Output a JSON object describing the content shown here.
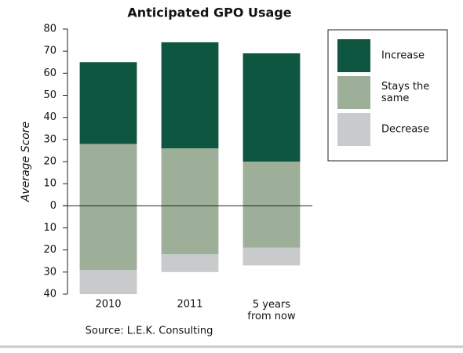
{
  "chart_data": {
    "type": "diverging-stacked-bar",
    "title": "Anticipated GPO Usage",
    "y_label": "Average Score",
    "source": "Source: L.E.K. Consulting",
    "categories": [
      "2010",
      "2011",
      "5 years from now"
    ],
    "series": [
      {
        "name": "Increase",
        "color": "#0f5640",
        "values": [
          37,
          48,
          49
        ]
      },
      {
        "name": "Stays the same",
        "color": "#9daf98",
        "values": [
          28,
          26,
          20
        ],
        "values_below": [
          -29,
          -22,
          -19
        ]
      },
      {
        "name": "Decrease",
        "color": "#c8cacb",
        "values": [
          -11,
          -8,
          -8
        ]
      }
    ],
    "ylim": [
      -40,
      80
    ],
    "yticks": [
      {
        "value": -40,
        "label": "40"
      },
      {
        "value": -30,
        "label": "30"
      },
      {
        "value": -20,
        "label": "20"
      },
      {
        "value": -10,
        "label": "10"
      },
      0,
      10,
      20,
      30,
      40,
      50,
      60,
      70,
      80
    ],
    "legend": "upper right"
  }
}
